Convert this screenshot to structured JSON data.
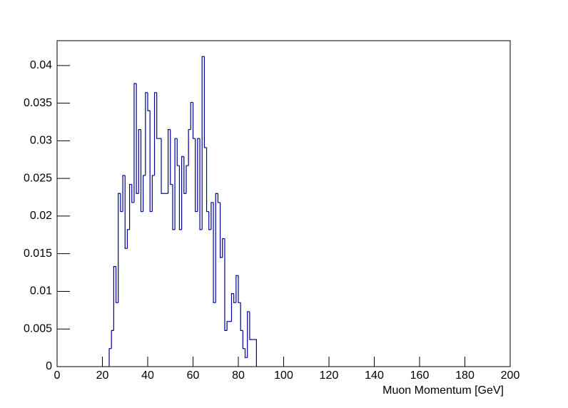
{
  "chart_data": {
    "type": "histogram",
    "x_label": "Muon Momentum [GeV]",
    "color": "#000099",
    "bins": [
      23,
      24,
      25,
      26,
      27,
      28,
      29,
      30,
      31,
      32,
      33,
      34,
      35,
      36,
      37,
      38,
      39,
      40,
      41,
      42,
      43,
      44,
      45,
      46,
      47,
      48,
      49,
      50,
      51,
      52,
      53,
      54,
      55,
      56,
      57,
      58,
      59,
      60,
      61,
      62,
      63,
      64,
      65,
      66,
      67,
      68,
      69,
      70,
      71,
      72,
      73,
      74,
      75,
      76,
      77,
      78,
      79,
      80,
      81,
      82,
      83,
      84,
      85,
      86,
      87,
      88
    ],
    "values": [
      0.0024,
      0.0048,
      0.0133,
      0.0085,
      0.023,
      0.0206,
      0.0254,
      0.0157,
      0.0182,
      0.0242,
      0.0218,
      0.0376,
      0.023,
      0.0315,
      0.0206,
      0.0254,
      0.0364,
      0.034,
      0.0206,
      0.0254,
      0.0364,
      0.0303,
      0.0303,
      0.023,
      0.023,
      0.023,
      0.0315,
      0.0242,
      0.0182,
      0.0303,
      0.0267,
      0.0182,
      0.0279,
      0.023,
      0.0267,
      0.0315,
      0.0351,
      0.0303,
      0.0206,
      0.0303,
      0.0182,
      0.0412,
      0.0291,
      0.0206,
      0.0182,
      0.0218,
      0.0085,
      0.023,
      0.0218,
      0.0145,
      0.017,
      0.0048,
      0.006,
      0.006,
      0.0097,
      0.0085,
      0.0121,
      0.0085,
      0.0048,
      0.0024,
      0.0012,
      0.0073,
      0.0036,
      0.0036,
      0.0036
    ],
    "xlim": [
      0,
      200
    ],
    "xticks": [
      0,
      20,
      40,
      60,
      80,
      100,
      120,
      140,
      160,
      180,
      200
    ],
    "ylim": [
      0,
      0.0433
    ],
    "yticks": [
      0,
      0.005,
      0.01,
      0.015,
      0.02,
      0.025,
      0.03,
      0.035,
      0.04
    ]
  }
}
